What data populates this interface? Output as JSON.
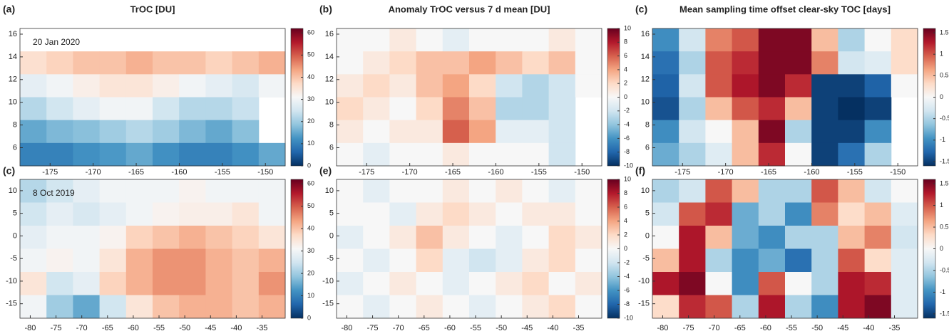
{
  "chart_data": [
    {
      "type": "heatmap",
      "label": "(a)",
      "title": "TrOC [DU]",
      "annotation": "20 Jan 2020",
      "xlim": [
        -178.5,
        -147.7
      ],
      "ylim": [
        4.4,
        16.5
      ],
      "xticks": [
        -175,
        -170,
        -165,
        -160,
        -155,
        -150
      ],
      "yticks": [
        6,
        8,
        10,
        12,
        14,
        16
      ],
      "clim": [
        0,
        62
      ],
      "cticks": [
        0,
        10,
        20,
        30,
        40,
        50,
        60
      ],
      "colormap": [
        "#053061",
        "#2166ac",
        "#4393c3",
        "#92c5de",
        "#d1e5f0",
        "#f7f7f7",
        "#fddbc7",
        "#f4a582",
        "#d6604d",
        "#b2182b",
        "#67001f"
      ],
      "z": [
        [
          null,
          null,
          null,
          null,
          null,
          null,
          null,
          null,
          null,
          null
        ],
        [
          36,
          38,
          40,
          40,
          42,
          40,
          40,
          38,
          40,
          42
        ],
        [
          28,
          30,
          33,
          35,
          35,
          33,
          30,
          28,
          26,
          30
        ],
        [
          22,
          25,
          28,
          30,
          30,
          25,
          22,
          22,
          24,
          null
        ],
        [
          15,
          17,
          18,
          20,
          22,
          20,
          17,
          15,
          18,
          null
        ],
        [
          10,
          10,
          12,
          13,
          15,
          12,
          10,
          10,
          12,
          15
        ]
      ]
    },
    {
      "type": "heatmap",
      "label": "(b)",
      "title": "Anomaly TrOC versus 7 d  mean [DU]",
      "xlim": [
        -178.5,
        -147.7
      ],
      "ylim": [
        4.4,
        16.5
      ],
      "xticks": [
        -175,
        -170,
        -165,
        -160,
        -155,
        -150
      ],
      "yticks": [
        6,
        8,
        10,
        12,
        14,
        16
      ],
      "clim": [
        -10,
        10
      ],
      "cticks": [
        -10,
        -8,
        -6,
        -4,
        -2,
        0,
        2,
        4,
        6,
        8,
        10
      ],
      "colormap": [
        "#053061",
        "#2166ac",
        "#4393c3",
        "#92c5de",
        "#d1e5f0",
        "#f7f7f7",
        "#fddbc7",
        "#f4a582",
        "#d6604d",
        "#b2182b",
        "#67001f"
      ],
      "z": [
        [
          0,
          0,
          1,
          0,
          -1,
          0,
          0,
          0,
          1,
          0
        ],
        [
          0,
          1,
          2,
          3,
          3,
          4,
          3,
          2,
          3,
          0
        ],
        [
          1,
          2,
          1,
          3,
          4,
          2,
          -2,
          -3,
          -2,
          0
        ],
        [
          2,
          1,
          0,
          2,
          5,
          3,
          -3,
          -3,
          -2,
          null
        ],
        [
          1,
          0,
          1,
          1,
          6,
          4,
          -1,
          -1,
          -2,
          null
        ],
        [
          0,
          -1,
          0,
          0,
          1,
          0,
          0,
          0,
          -2,
          null
        ]
      ]
    },
    {
      "type": "heatmap",
      "label": "(c)",
      "title": "Mean sampling time offset clear-sky TOC [days]",
      "xlim": [
        -178.5,
        -147.7
      ],
      "ylim": [
        4.4,
        16.5
      ],
      "xticks": [
        -175,
        -170,
        -165,
        -160,
        -155,
        -150
      ],
      "yticks": [
        6,
        8,
        10,
        12,
        14,
        16
      ],
      "clim": [
        -1.6,
        1.6
      ],
      "cticks": [
        -1.5,
        -1,
        -0.5,
        0,
        0.5,
        1,
        1.5
      ],
      "colormap": [
        "#053061",
        "#2166ac",
        "#4393c3",
        "#92c5de",
        "#d1e5f0",
        "#f7f7f7",
        "#fddbc7",
        "#f4a582",
        "#d6604d",
        "#b2182b",
        "#67001f"
      ],
      "z": [
        [
          -1,
          -0.3,
          0.8,
          1,
          1.5,
          1.5,
          0.5,
          -0.5,
          0,
          0.3
        ],
        [
          -1.2,
          -0.5,
          1,
          1.2,
          1.5,
          1.5,
          0.8,
          -0.3,
          -0.2,
          0.3
        ],
        [
          -1.3,
          -0.3,
          1,
          1.3,
          1.5,
          1.2,
          -1.5,
          -1.5,
          -1.3,
          0
        ],
        [
          -1.4,
          -0.5,
          0.5,
          1,
          1.2,
          0.5,
          -1.5,
          -1.6,
          -1.5,
          null
        ],
        [
          -1,
          -0.3,
          0,
          0.5,
          1.5,
          -0.5,
          -1.5,
          -1.5,
          -1,
          null
        ],
        [
          -0.8,
          -0.5,
          -0.2,
          0.5,
          1.2,
          0,
          -1.5,
          -1.2,
          -0.5,
          null
        ]
      ]
    },
    {
      "type": "heatmap",
      "label": "(c)",
      "annotation": "8 Oct 2019",
      "xlim": [
        -82,
        -30.5
      ],
      "ylim": [
        -18.2,
        12.5
      ],
      "xticks": [
        -80,
        -75,
        -70,
        -65,
        -60,
        -55,
        -50,
        -45,
        -40,
        -35
      ],
      "yticks": [
        -15,
        -10,
        -5,
        0,
        5,
        10
      ],
      "clim": [
        0,
        62
      ],
      "cticks": [
        0,
        10,
        20,
        30,
        40,
        50,
        60
      ],
      "colormap": [
        "#053061",
        "#2166ac",
        "#4393c3",
        "#92c5de",
        "#d1e5f0",
        "#f7f7f7",
        "#fddbc7",
        "#f4a582",
        "#d6604d",
        "#b2182b",
        "#67001f"
      ],
      "z": [
        [
          22,
          25,
          28,
          30,
          30,
          30,
          32,
          30,
          30,
          30
        ],
        [
          25,
          28,
          26,
          28,
          30,
          32,
          33,
          33,
          35,
          30
        ],
        [
          28,
          30,
          30,
          32,
          38,
          40,
          42,
          40,
          38,
          35
        ],
        [
          30,
          32,
          30,
          35,
          42,
          45,
          45,
          42,
          40,
          42
        ],
        [
          35,
          25,
          28,
          38,
          42,
          45,
          45,
          42,
          40,
          45
        ],
        [
          30,
          20,
          15,
          25,
          35,
          40,
          42,
          42,
          40,
          42
        ]
      ]
    },
    {
      "type": "heatmap",
      "label": "(e)",
      "xlim": [
        -82,
        -30.5
      ],
      "ylim": [
        -18.2,
        12.5
      ],
      "xticks": [
        -80,
        -75,
        -70,
        -65,
        -60,
        -55,
        -50,
        -45,
        -40,
        -35
      ],
      "yticks": [
        -15,
        -10,
        -5,
        0,
        5,
        10
      ],
      "clim": [
        -10,
        10
      ],
      "cticks": [
        -10,
        -8,
        -6,
        -4,
        -2,
        0,
        2,
        4,
        6,
        8,
        10
      ],
      "colormap": [
        "#053061",
        "#2166ac",
        "#4393c3",
        "#92c5de",
        "#d1e5f0",
        "#f7f7f7",
        "#fddbc7",
        "#f4a582",
        "#d6604d",
        "#b2182b",
        "#67001f"
      ],
      "z": [
        [
          0,
          -1,
          0,
          0,
          1,
          0,
          1,
          0,
          -1,
          0
        ],
        [
          0,
          0,
          -1,
          1,
          2,
          1,
          0,
          1,
          1,
          0
        ],
        [
          -1,
          0,
          1,
          3,
          1,
          0,
          -1,
          0,
          2,
          1
        ],
        [
          0,
          -1,
          0,
          2,
          -1,
          -2,
          -1,
          1,
          2,
          0
        ],
        [
          -1,
          0,
          1,
          0,
          -1,
          0,
          1,
          2,
          0,
          1
        ],
        [
          0,
          -1,
          0,
          1,
          0,
          -1,
          0,
          1,
          2,
          0
        ]
      ]
    },
    {
      "type": "heatmap",
      "label": "(f)",
      "xlim": [
        -82,
        -30.5
      ],
      "ylim": [
        -18.2,
        12.5
      ],
      "xticks": [
        -80,
        -75,
        -70,
        -65,
        -60,
        -55,
        -50,
        -45,
        -40,
        -35
      ],
      "yticks": [
        -15,
        -10,
        -5,
        0,
        5,
        10
      ],
      "clim": [
        -1.6,
        1.6
      ],
      "cticks": [
        -1.5,
        -1,
        -0.5,
        0,
        0.5,
        1,
        1.5
      ],
      "colormap": [
        "#053061",
        "#2166ac",
        "#4393c3",
        "#92c5de",
        "#d1e5f0",
        "#f7f7f7",
        "#fddbc7",
        "#f4a582",
        "#d6604d",
        "#b2182b",
        "#67001f"
      ],
      "z": [
        [
          -0.5,
          -0.3,
          1,
          0.5,
          -0.5,
          -0.5,
          1,
          0.5,
          -0.3,
          0
        ],
        [
          -0.3,
          1,
          1.2,
          -0.8,
          -0.5,
          -1,
          0.8,
          0.3,
          0.5,
          -0.2
        ],
        [
          0,
          1.3,
          0.5,
          -0.8,
          -1,
          -0.5,
          -0.5,
          0.5,
          0.8,
          -0.3
        ],
        [
          0.5,
          1.3,
          -0.5,
          -1,
          -0.8,
          -1.2,
          -0.5,
          1,
          0.3,
          -0.2
        ],
        [
          1.3,
          1.5,
          0,
          -1,
          1,
          0,
          -0.5,
          1.3,
          1.2,
          -0.2
        ],
        [
          0.3,
          1.2,
          1,
          -0.5,
          1.3,
          -0.5,
          -1,
          1.3,
          1.5,
          -0.2
        ]
      ]
    }
  ]
}
